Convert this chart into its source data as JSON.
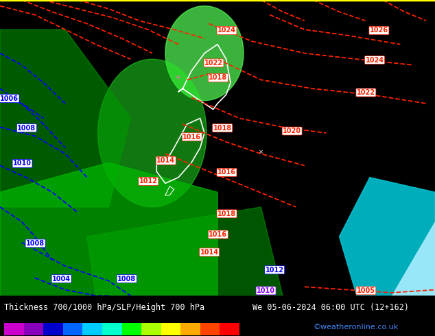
{
  "title_left": "Thickness 700/1000 hPa/SLP/Height 700 hPa",
  "title_right": "We 05-06-2024 06:00 UTC (12+162)",
  "credit": "©weatheronline.co.uk",
  "colorbar_values": [
    257,
    263,
    269,
    275,
    281,
    287,
    293,
    299,
    305,
    311,
    317,
    320
  ],
  "colorbar_colors": [
    "#cc00cc",
    "#8800bb",
    "#0000cc",
    "#0066ff",
    "#00ccff",
    "#00ffcc",
    "#00ff00",
    "#aaff00",
    "#ffff00",
    "#ffaa00",
    "#ff4400",
    "#ff0000"
  ],
  "bg_color": "#00ff00",
  "border_color": "#ffff00",
  "text_color_credit": "#4488ff",
  "red_color": "#ff2200",
  "blue_color": "#0000ff",
  "figsize": [
    6.34,
    4.9
  ],
  "dpi": 100
}
